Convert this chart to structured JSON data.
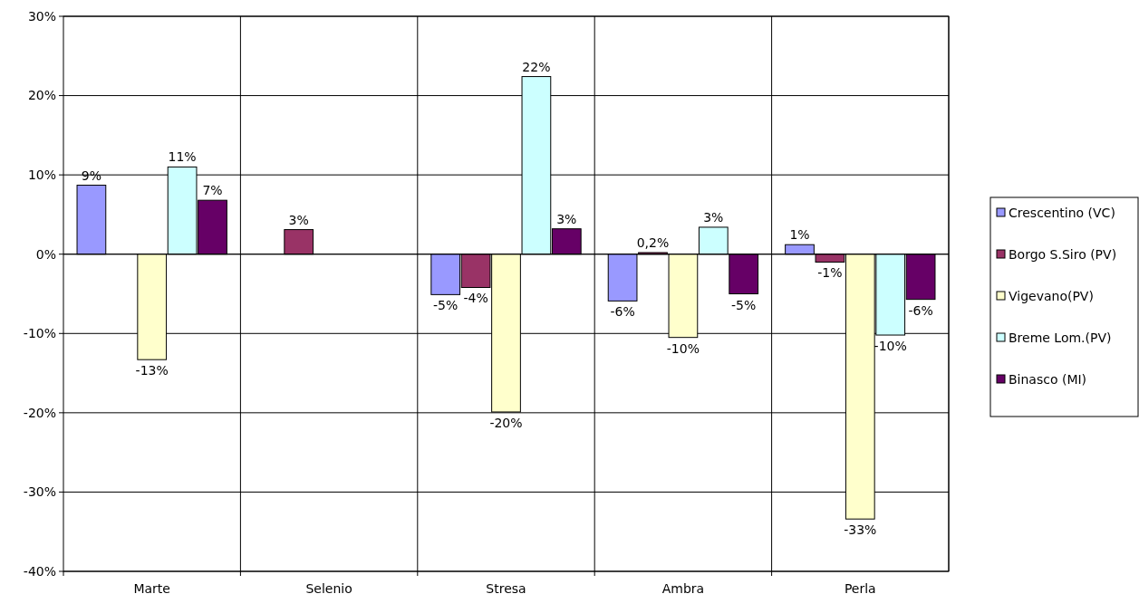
{
  "chart_data": {
    "type": "bar",
    "categories": [
      "Marte",
      "Selenio",
      "Stresa",
      "Ambra",
      "Perla"
    ],
    "series": [
      {
        "name": "Crescentino (VC)",
        "color": "#9999ff",
        "values": [
          8.7,
          null,
          -5.1,
          -5.9,
          1.2
        ],
        "value_labels": [
          "9%",
          null,
          "-5%",
          "-6%",
          "1%"
        ]
      },
      {
        "name": "Borgo S.Siro (PV)",
        "color": "#993366",
        "values": [
          null,
          3.1,
          -4.2,
          0.2,
          -1.0
        ],
        "value_labels": [
          null,
          "3%",
          "-4%",
          "0,2%",
          "-1%"
        ]
      },
      {
        "name": "Vigevano(PV)",
        "color": "#ffffcc",
        "values": [
          -13.3,
          null,
          -19.9,
          -10.5,
          -33.4
        ],
        "value_labels": [
          "-13%",
          null,
          "-20%",
          "-10%",
          "-33%"
        ]
      },
      {
        "name": "Breme Lom.(PV)",
        "color": "#ccffff",
        "values": [
          11.0,
          null,
          22.4,
          3.4,
          -10.2
        ],
        "value_labels": [
          "11%",
          null,
          "22%",
          "3%",
          "-10%"
        ]
      },
      {
        "name": "Binasco (MI)",
        "color": "#660066",
        "values": [
          6.8,
          null,
          3.2,
          -5.0,
          -5.7
        ],
        "value_labels": [
          "7%",
          null,
          "3%",
          "-5%",
          "-6%"
        ]
      }
    ],
    "ylim": [
      -40,
      30
    ],
    "yticks": [
      {
        "value": -40,
        "label": "-40%"
      },
      {
        "value": -30,
        "label": "-30%"
      },
      {
        "value": -20,
        "label": "-20%"
      },
      {
        "value": -10,
        "label": "-10%"
      },
      {
        "value": 0,
        "label": "0%"
      },
      {
        "value": 10,
        "label": "10%"
      },
      {
        "value": 20,
        "label": "20%"
      },
      {
        "value": 30,
        "label": "30%"
      }
    ],
    "grid": true,
    "legend": "right"
  }
}
